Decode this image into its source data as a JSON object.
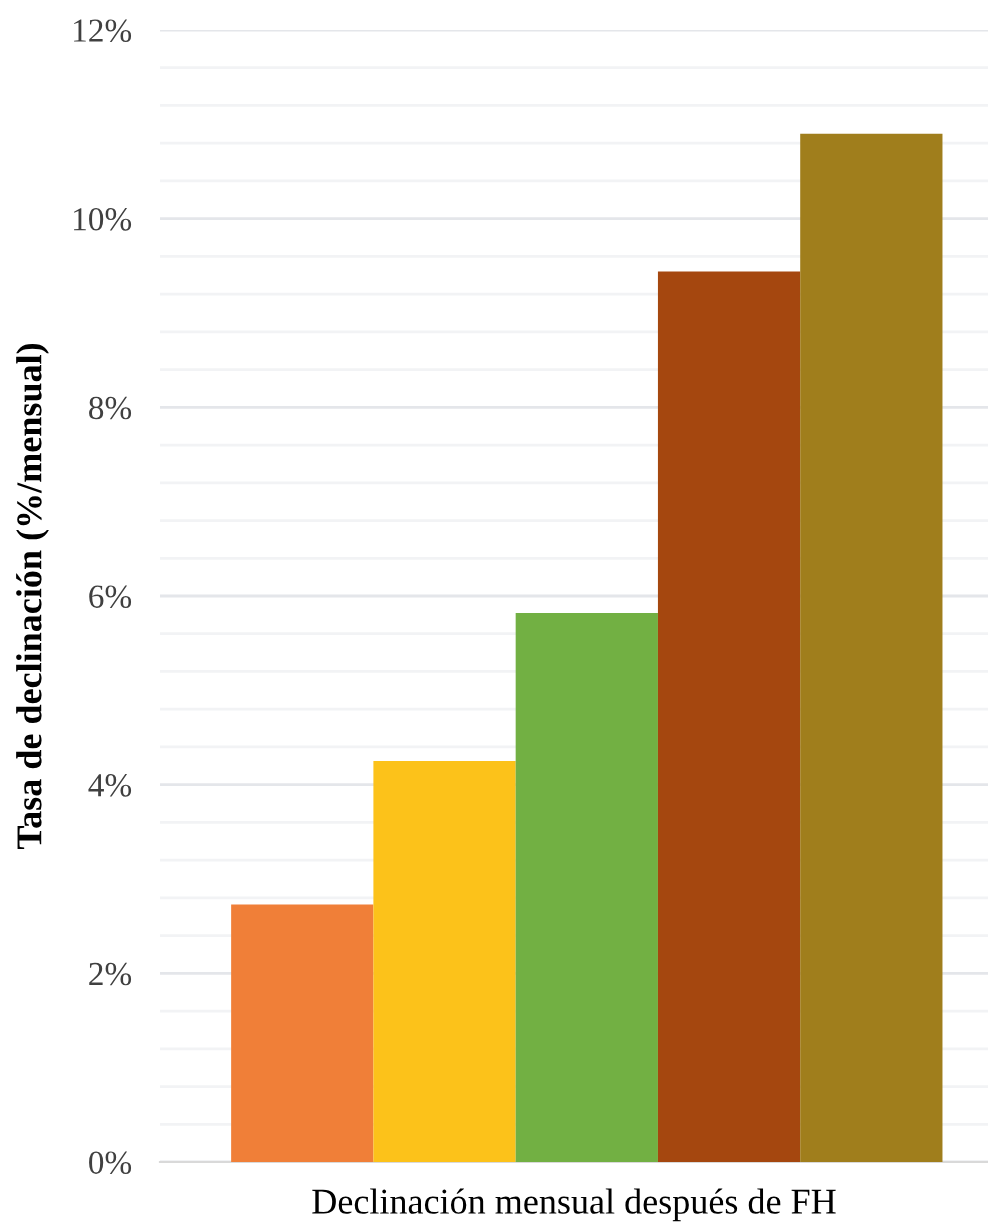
{
  "chart_data": {
    "type": "bar",
    "xlabel": "Declinación mensual después de FH",
    "ylabel": "Tasa de declinación (%/mensual)",
    "categories": [
      null,
      null,
      null,
      null,
      null
    ],
    "values": [
      2.73,
      4.25,
      5.82,
      9.44,
      10.9
    ],
    "colors": [
      "#f07f38",
      "#fcc21a",
      "#72b043",
      "#a5470f",
      "#a07e1c"
    ],
    "ylim": [
      0,
      12
    ],
    "yticks": [
      {
        "value": 0,
        "label": "0%"
      },
      {
        "value": 0.4,
        "label": null
      },
      {
        "value": 0.8,
        "label": null
      },
      {
        "value": 1.2,
        "label": null
      },
      {
        "value": 1.6,
        "label": null
      },
      {
        "value": 2,
        "label": "2%"
      },
      {
        "value": 2.4,
        "label": null
      },
      {
        "value": 2.8,
        "label": null
      },
      {
        "value": 3.2,
        "label": null
      },
      {
        "value": 3.6,
        "label": null
      },
      {
        "value": 4,
        "label": "4%"
      },
      {
        "value": 4.4,
        "label": null
      },
      {
        "value": 4.8,
        "label": null
      },
      {
        "value": 5.2,
        "label": null
      },
      {
        "value": 5.6,
        "label": null
      },
      {
        "value": 6,
        "label": "6%"
      },
      {
        "value": 6.4,
        "label": null
      },
      {
        "value": 6.8,
        "label": null
      },
      {
        "value": 7.2,
        "label": null
      },
      {
        "value": 7.6,
        "label": null
      },
      {
        "value": 8,
        "label": "8%"
      },
      {
        "value": 8.4,
        "label": null
      },
      {
        "value": 8.8,
        "label": null
      },
      {
        "value": 9.2,
        "label": null
      },
      {
        "value": 9.6,
        "label": null
      },
      {
        "value": 10,
        "label": "10%"
      },
      {
        "value": 10.4,
        "label": null
      },
      {
        "value": 10.8,
        "label": null
      },
      {
        "value": 11.2,
        "label": null
      },
      {
        "value": 11.6,
        "label": null
      },
      {
        "value": 12,
        "label": "12%"
      }
    ],
    "grid": "y",
    "legend": false
  }
}
